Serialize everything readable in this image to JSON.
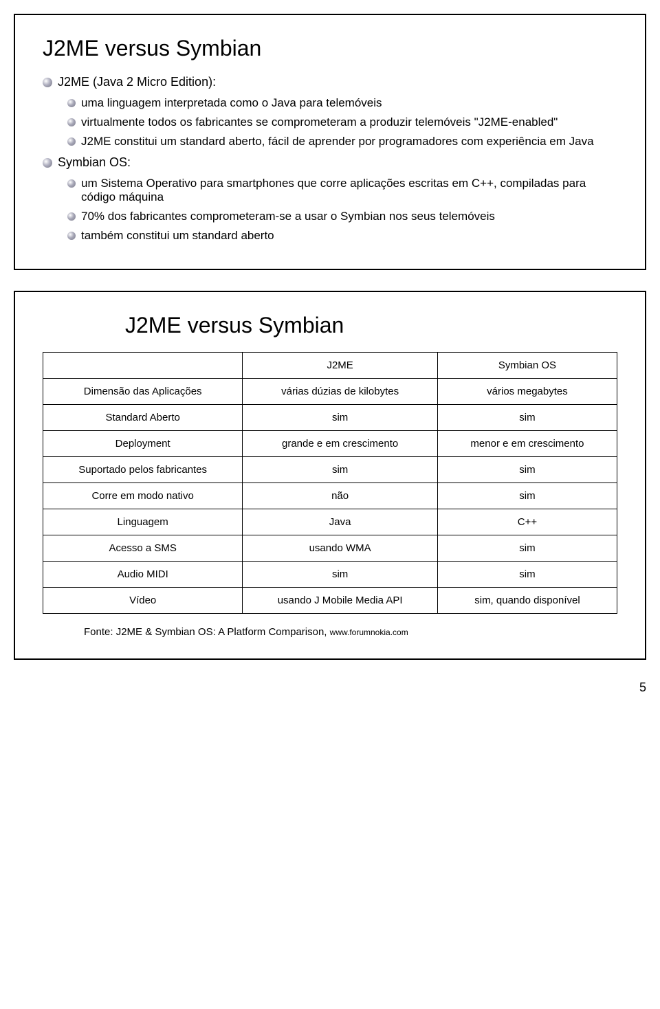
{
  "slide1": {
    "title": "J2ME versus Symbian",
    "j2me_heading": "J2ME (Java 2 Micro Edition):",
    "j2me_b1": "uma linguagem interpretada como o Java para telemóveis",
    "j2me_b2": "virtualmente todos os fabricantes se comprometeram a produzir telemóveis \"J2ME-enabled\"",
    "j2me_b3": "J2ME constitui um standard aberto, fácil de aprender por programadores com experiência em Java",
    "symbian_heading": "Symbian OS:",
    "sym_b1": "um Sistema Operativo para smartphones que corre aplicações escritas em C++, compiladas para código máquina",
    "sym_b2": "70% dos fabricantes comprometeram-se a usar o Symbian nos seus telemóveis",
    "sym_b3": "também constitui um standard aberto"
  },
  "slide2": {
    "title": "J2ME versus Symbian",
    "columns": [
      "",
      "J2ME",
      "Symbian OS"
    ],
    "rows": [
      [
        "Dimensão das Aplicações",
        "várias dúzias de kilobytes",
        "vários megabytes"
      ],
      [
        "Standard Aberto",
        "sim",
        "sim"
      ],
      [
        "Deployment",
        "grande e em crescimento",
        "menor e em crescimento"
      ],
      [
        "Suportado pelos fabricantes",
        "sim",
        "sim"
      ],
      [
        "Corre em modo nativo",
        "não",
        "sim"
      ],
      [
        "Linguagem",
        "Java",
        "C++"
      ],
      [
        "Acesso a SMS",
        "usando WMA",
        "sim"
      ],
      [
        "Audio MIDI",
        "sim",
        "sim"
      ],
      [
        "Vídeo",
        "usando J Mobile Media API",
        "sim, quando disponível"
      ]
    ],
    "source_prefix": "Fonte: J2ME & Symbian OS: A Platform Comparison, ",
    "source_url": "www.forumnokia.com"
  },
  "page_number": "5",
  "colors": {
    "border": "#000000",
    "text": "#000000",
    "background": "#ffffff"
  }
}
